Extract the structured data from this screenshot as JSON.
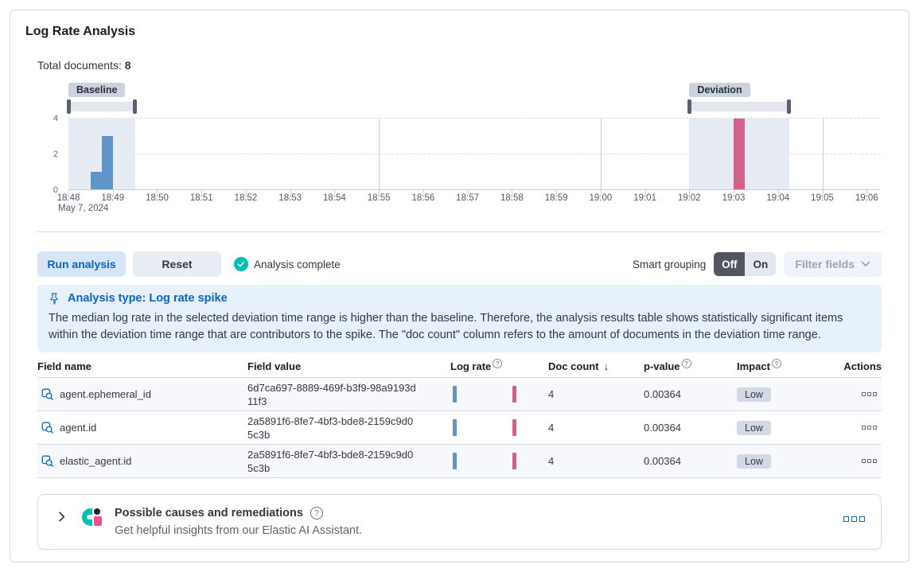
{
  "page": {
    "title": "Log Rate Analysis",
    "total_documents_label": "Total documents:",
    "total_documents_value": "8"
  },
  "chart_data": {
    "type": "bar",
    "title": "Document count histogram",
    "x_ticks": [
      "18:48",
      "18:49",
      "18:50",
      "18:51",
      "18:52",
      "18:53",
      "18:54",
      "18:55",
      "18:56",
      "18:57",
      "18:58",
      "18:59",
      "19:00",
      "19:01",
      "19:02",
      "19:03",
      "19:04",
      "19:05",
      "19:06"
    ],
    "x_date_label": "May 7, 2024",
    "x_span_minutes": 18.3,
    "y_ticks": [
      0,
      2,
      4
    ],
    "ylim": [
      0,
      4
    ],
    "grid": true,
    "legend": false,
    "bar_width_seconds": 15,
    "series": [
      {
        "name": "baseline",
        "color": "#6095c8",
        "points": [
          {
            "x": "18:48:30",
            "y": 1
          },
          {
            "x": "18:48:45",
            "y": 3
          }
        ]
      },
      {
        "name": "deviation",
        "color": "#d4618c",
        "points": [
          {
            "x": "19:03:00",
            "y": 4
          }
        ]
      }
    ],
    "annotations": [
      {
        "id": "baseline",
        "label": "Baseline",
        "from": "18:48:00",
        "to": "18:49:30"
      },
      {
        "id": "deviation",
        "label": "Deviation",
        "from": "19:02:00",
        "to": "19:04:15"
      }
    ],
    "major_gridlines": [
      "18:55",
      "19:00",
      "19:05"
    ],
    "region_fill": "#e7ebf3"
  },
  "toolbar": {
    "run_analysis": "Run analysis",
    "reset": "Reset",
    "status": "Analysis complete",
    "smart_grouping_label": "Smart grouping",
    "off": "Off",
    "on": "On",
    "filter_fields": "Filter fields"
  },
  "callout": {
    "title": "Analysis type: Log rate spike",
    "body": "The median log rate in the selected deviation time range is higher than the baseline. Therefore, the analysis results table shows statistically significant items within the deviation time range that are contributors to the spike. The \"doc count\" column refers to the amount of documents in the deviation time range."
  },
  "table": {
    "columns": [
      {
        "label": "Field name"
      },
      {
        "label": "Field value"
      },
      {
        "label": "Log rate",
        "info": true
      },
      {
        "label": "Doc count",
        "sort": "desc"
      },
      {
        "label": "p-value",
        "info": true
      },
      {
        "label": "Impact",
        "info": true
      },
      {
        "label": "Actions"
      }
    ],
    "sort_arrow": "↓",
    "rows": [
      {
        "field_name": "agent.ephemeral_id",
        "field_value": "6d7ca697-8889-469f-b3f9-98a9193d11f3",
        "doc_count": "4",
        "p_value": "0.00364",
        "impact": "Low"
      },
      {
        "field_name": "agent.id",
        "field_value": "2a5891f6-8fe7-4bf3-bde8-2159c9d05c3b",
        "doc_count": "4",
        "p_value": "0.00364",
        "impact": "Low"
      },
      {
        "field_name": "elastic_agent.id",
        "field_value": "2a5891f6-8fe7-4bf3-bde8-2159c9d05c3b",
        "doc_count": "4",
        "p_value": "0.00364",
        "impact": "Low"
      }
    ]
  },
  "insights_panel": {
    "title": "Possible causes and remediations",
    "subtitle": "Get helpful insights from our Elastic AI Assistant."
  },
  "icons": {
    "status": "check-in-circle",
    "callout": "pin",
    "row_action": "search-filter",
    "table_actions": "boxes-horizontal",
    "panel_toggle": "chevron-right",
    "help": "question-in-circle",
    "assistant": "ai-assistant-logo",
    "sort": "arrow-down",
    "filter_chevron": "chevron-down"
  },
  "colors": {
    "primary_blue": "#0b64c2",
    "baseline_bar": "#6095c8",
    "deviation_bar": "#d4618c",
    "success_teal": "#00bfb3",
    "callout_bg": "#e6f1fa",
    "chart_badge_gray": "#ccd3e0",
    "toggle_dark": "#53565f",
    "border": "#d3dae6",
    "ai_pink": "#f04e98",
    "impact_badge": "#d3dae6"
  }
}
